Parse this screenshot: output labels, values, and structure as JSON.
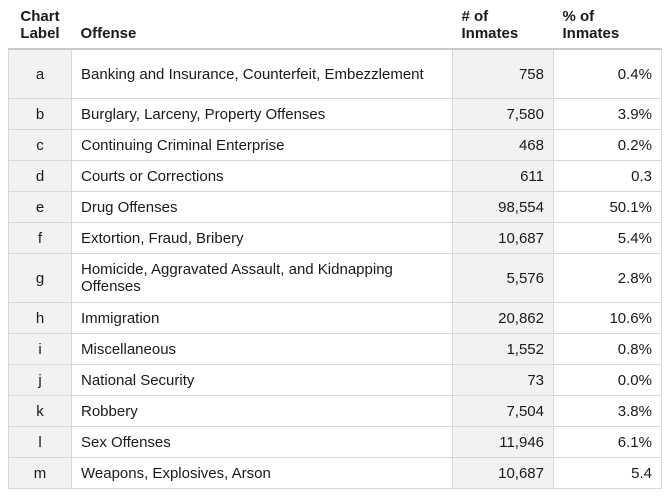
{
  "headers": {
    "label": "Chart Label",
    "label_line1": "Chart",
    "label_line2": "Label",
    "offense": "Offense",
    "num_line1": "# of",
    "num_line2": "Inmates",
    "pct_line1": "% of",
    "pct_line2": "Inmates"
  },
  "rows": [
    {
      "label": "a",
      "offense": "Banking and Insurance, Counterfeit, Embezzlement",
      "num": "758",
      "pct": "0.4%"
    },
    {
      "label": "b",
      "offense": "Burglary, Larceny, Property Offenses",
      "num": "7,580",
      "pct": "3.9%"
    },
    {
      "label": "c",
      "offense": "Continuing Criminal Enterprise",
      "num": "468",
      "pct": "0.2%"
    },
    {
      "label": "d",
      "offense": "Courts or Corrections",
      "num": "611",
      "pct": "0.3"
    },
    {
      "label": "e",
      "offense": "Drug Offenses",
      "num": "98,554",
      "pct": "50.1%"
    },
    {
      "label": "f",
      "offense": "Extortion, Fraud, Bribery",
      "num": "10,687",
      "pct": "5.4%"
    },
    {
      "label": "g",
      "offense": "Homicide, Aggravated Assault, and Kidnapping Offenses",
      "num": "5,576",
      "pct": "2.8%"
    },
    {
      "label": "h",
      "offense": "Immigration",
      "num": "20,862",
      "pct": "10.6%"
    },
    {
      "label": "i",
      "offense": "Miscellaneous",
      "num": "1,552",
      "pct": "0.8%"
    },
    {
      "label": "j",
      "offense": "National Security",
      "num": "73",
      "pct": "0.0%"
    },
    {
      "label": "k",
      "offense": "Robbery",
      "num": "7,504",
      "pct": "3.8%"
    },
    {
      "label": "l",
      "offense": "Sex Offenses",
      "num": "11,946",
      "pct": "6.1%"
    },
    {
      "label": "m",
      "offense": "Weapons, Explosives, Arson",
      "num": "10,687",
      "pct": "5.4"
    }
  ]
}
